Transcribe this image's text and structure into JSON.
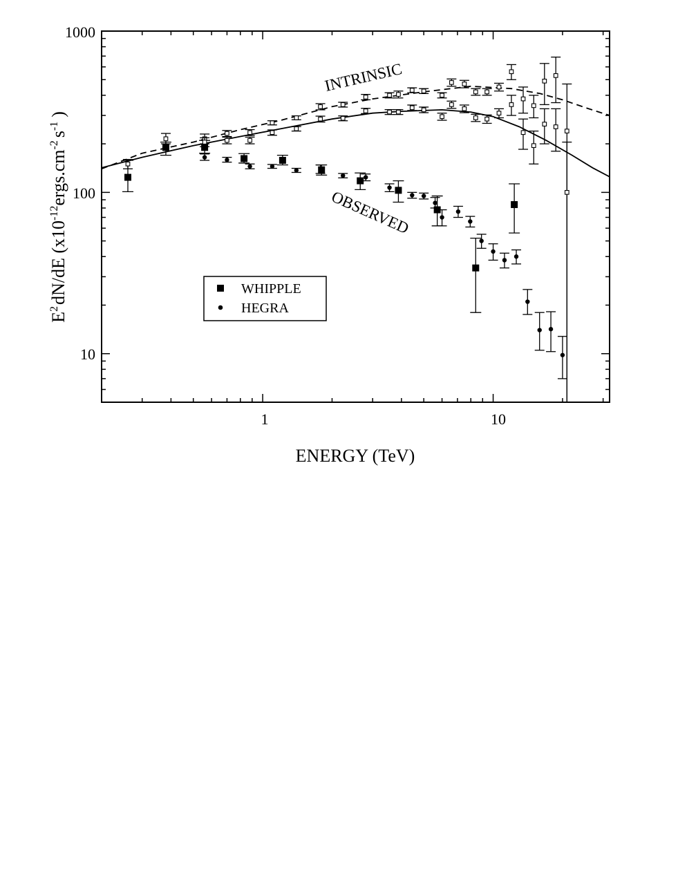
{
  "chart_data": {
    "type": "scatter",
    "xscale": "log",
    "yscale": "log",
    "xlim": [
      0.2,
      32
    ],
    "ylim": [
      5,
      1000
    ],
    "x_tick_labels": [
      {
        "value": 1,
        "label": "1"
      },
      {
        "value": 10,
        "label": "10"
      }
    ],
    "y_tick_labels": [
      {
        "value": 10,
        "label": "10"
      },
      {
        "value": 100,
        "label": "100"
      },
      {
        "value": 1000,
        "label": "1000"
      }
    ],
    "xlabel": "ENERGY (TeV)",
    "ylabel": {
      "part1": "E",
      "sup1": "2",
      "part2": "dN/dE (x10",
      "sup2": "-12",
      "part3": "ergs.cm",
      "sup3": "-2",
      "part4": "s",
      "sup4": "-1",
      "part5": ")"
    },
    "annotations": {
      "intrinsic": "INTRINSIC",
      "observed": "OBSERVED"
    },
    "legend": {
      "position": "lower-left",
      "entries": [
        {
          "marker": "filled-square",
          "label": "WHIPPLE"
        },
        {
          "marker": "filled-circle",
          "label": "HEGRA"
        }
      ]
    },
    "grid": false,
    "series": [
      {
        "key": "whipple_observed",
        "marker": "filled-square",
        "points": [
          {
            "x": 0.26,
            "y": 124,
            "lo": 101,
            "hi": 158
          },
          {
            "x": 0.38,
            "y": 190,
            "lo": 170,
            "hi": 205
          },
          {
            "x": 0.56,
            "y": 190,
            "lo": 175,
            "hi": 210
          },
          {
            "x": 0.83,
            "y": 162,
            "lo": 152,
            "hi": 174
          },
          {
            "x": 1.22,
            "y": 158,
            "lo": 148,
            "hi": 170
          },
          {
            "x": 1.8,
            "y": 138,
            "lo": 128,
            "hi": 148
          },
          {
            "x": 2.65,
            "y": 118,
            "lo": 104,
            "hi": 132
          },
          {
            "x": 3.88,
            "y": 103,
            "lo": 87,
            "hi": 118
          },
          {
            "x": 5.72,
            "y": 78,
            "lo": 62,
            "hi": 95
          },
          {
            "x": 8.4,
            "y": 34,
            "lo": 18,
            "hi": 52
          },
          {
            "x": 12.35,
            "y": 84,
            "lo": 56,
            "hi": 113
          }
        ]
      },
      {
        "key": "hegra_observed",
        "marker": "filled-circle",
        "points": [
          {
            "x": 0.56,
            "y": 165,
            "lo": 158,
            "hi": 173
          },
          {
            "x": 0.7,
            "y": 159,
            "lo": 154,
            "hi": 165
          },
          {
            "x": 0.88,
            "y": 145,
            "lo": 140,
            "hi": 150
          },
          {
            "x": 1.1,
            "y": 145,
            "lo": 141,
            "hi": 149
          },
          {
            "x": 1.4,
            "y": 137,
            "lo": 133,
            "hi": 141
          },
          {
            "x": 1.78,
            "y": 140,
            "lo": 131,
            "hi": 148
          },
          {
            "x": 2.23,
            "y": 127,
            "lo": 123,
            "hi": 131
          },
          {
            "x": 2.8,
            "y": 124,
            "lo": 118,
            "hi": 130
          },
          {
            "x": 3.55,
            "y": 107,
            "lo": 101,
            "hi": 113
          },
          {
            "x": 4.45,
            "y": 96,
            "lo": 92,
            "hi": 100
          },
          {
            "x": 5.0,
            "y": 95,
            "lo": 91,
            "hi": 99
          },
          {
            "x": 5.6,
            "y": 86,
            "lo": 80,
            "hi": 93
          },
          {
            "x": 6.0,
            "y": 70,
            "lo": 62,
            "hi": 78
          },
          {
            "x": 7.05,
            "y": 76,
            "lo": 70,
            "hi": 82
          },
          {
            "x": 7.95,
            "y": 66,
            "lo": 61,
            "hi": 71
          },
          {
            "x": 8.9,
            "y": 50,
            "lo": 45,
            "hi": 55
          },
          {
            "x": 10.0,
            "y": 43,
            "lo": 38,
            "hi": 48
          },
          {
            "x": 11.2,
            "y": 38,
            "lo": 34,
            "hi": 42
          },
          {
            "x": 12.6,
            "y": 40,
            "lo": 36,
            "hi": 44
          },
          {
            "x": 14.1,
            "y": 21,
            "lo": 17.5,
            "hi": 25
          },
          {
            "x": 15.9,
            "y": 14,
            "lo": 10.5,
            "hi": 18
          },
          {
            "x": 17.8,
            "y": 14.2,
            "lo": 10.3,
            "hi": 18.2
          },
          {
            "x": 20.0,
            "y": 9.8,
            "lo": 7,
            "hi": 12.8
          }
        ]
      },
      {
        "key": "intrinsic_upper",
        "marker": "open-square",
        "points": [
          {
            "x": 0.26,
            "y": 150,
            "lo": 140,
            "hi": 160
          },
          {
            "x": 0.38,
            "y": 215,
            "lo": 200,
            "hi": 232
          },
          {
            "x": 0.56,
            "y": 215,
            "lo": 200,
            "hi": 230
          },
          {
            "x": 0.7,
            "y": 232,
            "lo": 222,
            "hi": 242
          },
          {
            "x": 0.88,
            "y": 235,
            "lo": 225,
            "hi": 245
          },
          {
            "x": 1.1,
            "y": 270,
            "lo": 262,
            "hi": 278
          },
          {
            "x": 1.4,
            "y": 290,
            "lo": 282,
            "hi": 298
          },
          {
            "x": 1.78,
            "y": 340,
            "lo": 325,
            "hi": 355
          },
          {
            "x": 2.23,
            "y": 350,
            "lo": 338,
            "hi": 362
          },
          {
            "x": 2.8,
            "y": 390,
            "lo": 375,
            "hi": 405
          },
          {
            "x": 3.55,
            "y": 400,
            "lo": 385,
            "hi": 415
          },
          {
            "x": 3.88,
            "y": 405,
            "lo": 385,
            "hi": 425
          },
          {
            "x": 4.45,
            "y": 430,
            "lo": 415,
            "hi": 445
          },
          {
            "x": 5.0,
            "y": 425,
            "lo": 410,
            "hi": 440
          },
          {
            "x": 6.0,
            "y": 400,
            "lo": 385,
            "hi": 415
          },
          {
            "x": 6.6,
            "y": 480,
            "lo": 455,
            "hi": 505
          },
          {
            "x": 7.5,
            "y": 470,
            "lo": 445,
            "hi": 495
          },
          {
            "x": 8.4,
            "y": 420,
            "lo": 400,
            "hi": 440
          },
          {
            "x": 9.4,
            "y": 420,
            "lo": 400,
            "hi": 440
          },
          {
            "x": 10.6,
            "y": 450,
            "lo": 425,
            "hi": 475
          },
          {
            "x": 12.0,
            "y": 560,
            "lo": 500,
            "hi": 620
          },
          {
            "x": 13.5,
            "y": 380,
            "lo": 310,
            "hi": 450
          },
          {
            "x": 15.0,
            "y": 345,
            "lo": 290,
            "hi": 400
          },
          {
            "x": 16.7,
            "y": 490,
            "lo": 350,
            "hi": 630
          },
          {
            "x": 18.7,
            "y": 530,
            "lo": 360,
            "hi": 690
          },
          {
            "x": 20.9,
            "y": 240,
            "lo": 5,
            "hi": 470
          }
        ]
      },
      {
        "key": "intrinsic_lower",
        "marker": "open-square",
        "points": [
          {
            "x": 0.56,
            "y": 205,
            "lo": 192,
            "hi": 218
          },
          {
            "x": 0.7,
            "y": 210,
            "lo": 200,
            "hi": 220
          },
          {
            "x": 0.88,
            "y": 210,
            "lo": 200,
            "hi": 220
          },
          {
            "x": 1.1,
            "y": 235,
            "lo": 226,
            "hi": 244
          },
          {
            "x": 1.4,
            "y": 248,
            "lo": 240,
            "hi": 256
          },
          {
            "x": 1.78,
            "y": 285,
            "lo": 273,
            "hi": 297
          },
          {
            "x": 2.23,
            "y": 288,
            "lo": 278,
            "hi": 298
          },
          {
            "x": 2.8,
            "y": 320,
            "lo": 308,
            "hi": 332
          },
          {
            "x": 3.55,
            "y": 315,
            "lo": 304,
            "hi": 326
          },
          {
            "x": 3.88,
            "y": 315,
            "lo": 304,
            "hi": 326
          },
          {
            "x": 4.45,
            "y": 335,
            "lo": 322,
            "hi": 348
          },
          {
            "x": 5.0,
            "y": 325,
            "lo": 312,
            "hi": 338
          },
          {
            "x": 6.0,
            "y": 295,
            "lo": 280,
            "hi": 310
          },
          {
            "x": 6.6,
            "y": 350,
            "lo": 332,
            "hi": 368
          },
          {
            "x": 7.5,
            "y": 330,
            "lo": 312,
            "hi": 348
          },
          {
            "x": 8.4,
            "y": 290,
            "lo": 275,
            "hi": 305
          },
          {
            "x": 9.4,
            "y": 285,
            "lo": 268,
            "hi": 302
          },
          {
            "x": 10.6,
            "y": 310,
            "lo": 290,
            "hi": 330
          },
          {
            "x": 12.0,
            "y": 350,
            "lo": 300,
            "hi": 400
          },
          {
            "x": 13.5,
            "y": 235,
            "lo": 185,
            "hi": 285
          },
          {
            "x": 15.0,
            "y": 195,
            "lo": 150,
            "hi": 240
          },
          {
            "x": 16.7,
            "y": 265,
            "lo": 200,
            "hi": 330
          },
          {
            "x": 18.7,
            "y": 255,
            "lo": 180,
            "hi": 330
          },
          {
            "x": 20.9,
            "y": 100,
            "lo": 5,
            "hi": 205
          }
        ]
      },
      {
        "key": "fit_dashed",
        "style": "dashed",
        "points": [
          {
            "x": 0.2,
            "y": 140
          },
          {
            "x": 0.3,
            "y": 175
          },
          {
            "x": 0.5,
            "y": 205
          },
          {
            "x": 0.8,
            "y": 245
          },
          {
            "x": 1.2,
            "y": 280
          },
          {
            "x": 2.0,
            "y": 340
          },
          {
            "x": 3.0,
            "y": 380
          },
          {
            "x": 5.0,
            "y": 420
          },
          {
            "x": 8.0,
            "y": 455
          },
          {
            "x": 12.0,
            "y": 440
          },
          {
            "x": 16.0,
            "y": 410
          },
          {
            "x": 20.0,
            "y": 375
          },
          {
            "x": 26.0,
            "y": 330
          },
          {
            "x": 32.0,
            "y": 300
          }
        ]
      },
      {
        "key": "fit_solid",
        "style": "solid",
        "points": [
          {
            "x": 0.2,
            "y": 142
          },
          {
            "x": 0.3,
            "y": 165
          },
          {
            "x": 0.5,
            "y": 195
          },
          {
            "x": 0.8,
            "y": 222
          },
          {
            "x": 1.2,
            "y": 248
          },
          {
            "x": 2.0,
            "y": 285
          },
          {
            "x": 3.0,
            "y": 310
          },
          {
            "x": 4.0,
            "y": 318
          },
          {
            "x": 6.0,
            "y": 325
          },
          {
            "x": 8.0,
            "y": 315
          },
          {
            "x": 10.0,
            "y": 295
          },
          {
            "x": 13.0,
            "y": 255
          },
          {
            "x": 17.0,
            "y": 210
          },
          {
            "x": 22.0,
            "y": 170
          },
          {
            "x": 27.0,
            "y": 142
          },
          {
            "x": 32.0,
            "y": 125
          }
        ]
      }
    ]
  }
}
